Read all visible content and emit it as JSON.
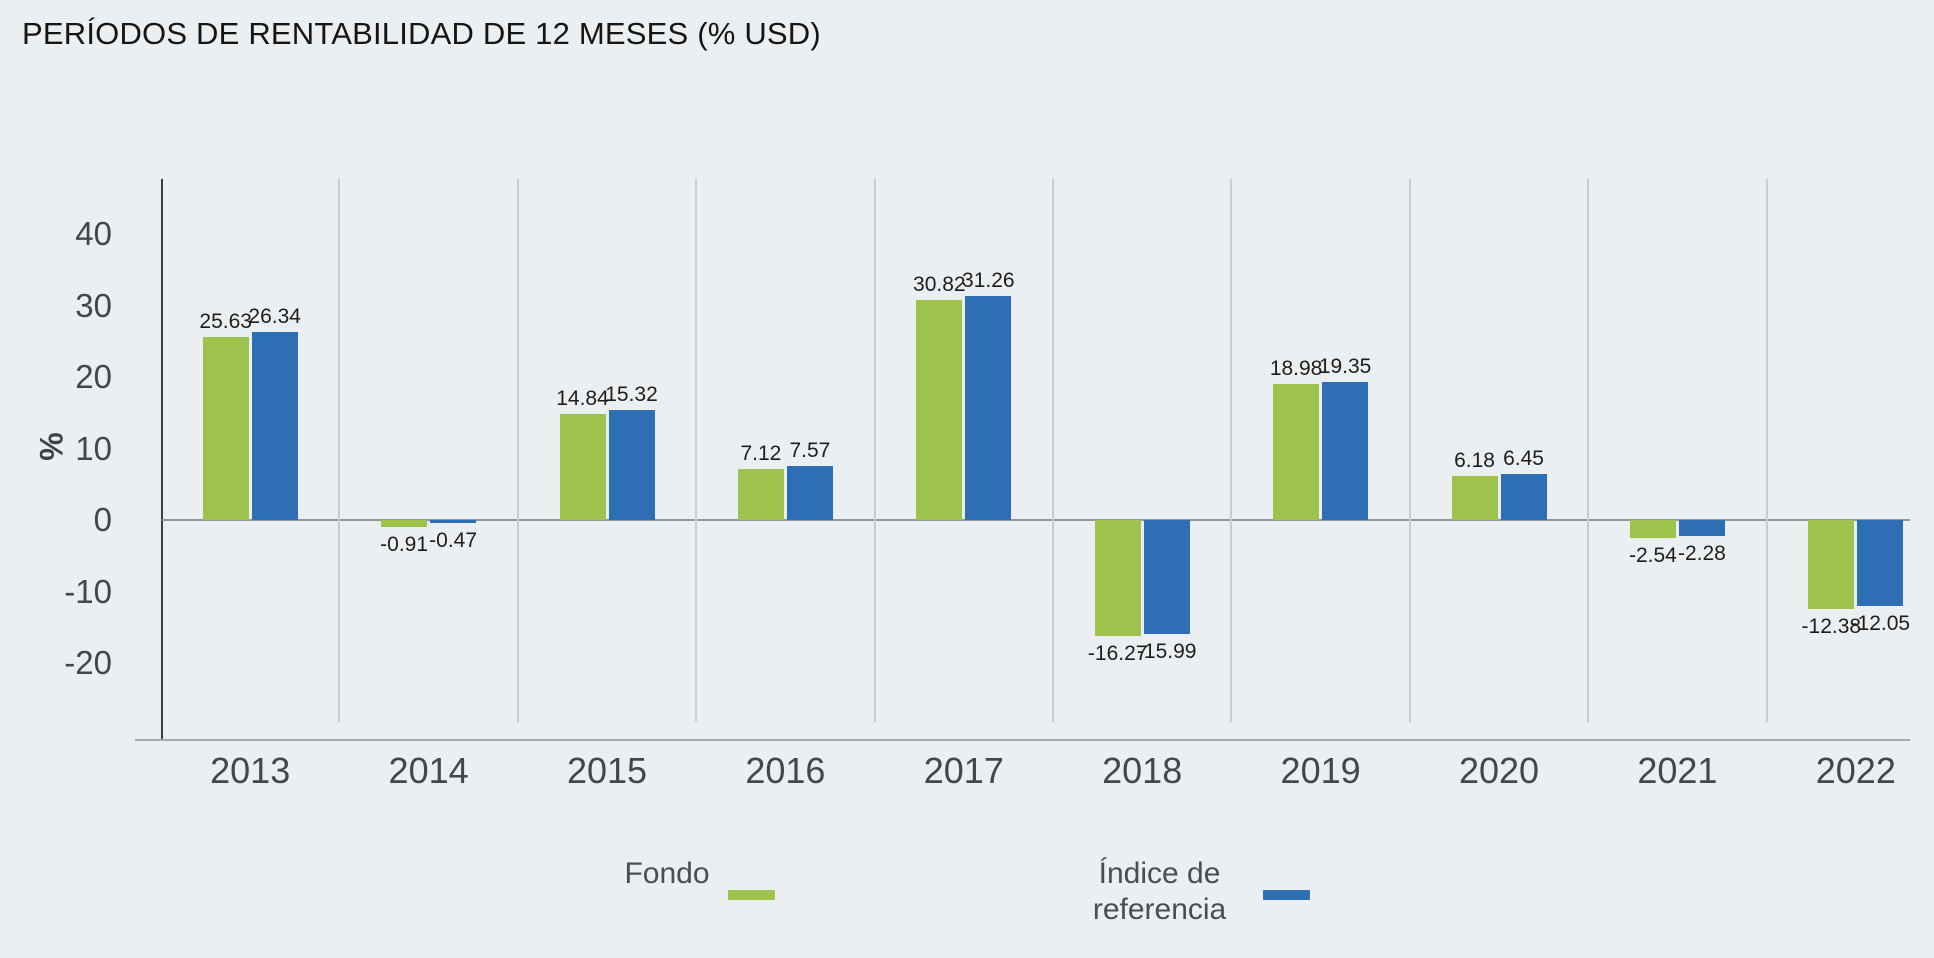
{
  "title": "PERÍODOS DE RENTABILIDAD DE 12 MESES (% USD)",
  "chart_data": {
    "type": "bar",
    "title": "PERÍODOS DE RENTABILIDAD DE 12 MESES (% USD)",
    "categories": [
      "2013",
      "2014",
      "2015",
      "2016",
      "2017",
      "2018",
      "2019",
      "2020",
      "2021",
      "2022"
    ],
    "series": [
      {
        "name": "Fondo",
        "color": "#9dc34c",
        "values": [
          25.63,
          -0.91,
          14.84,
          7.12,
          30.82,
          -16.27,
          18.98,
          6.18,
          -2.54,
          -12.38
        ]
      },
      {
        "name": "Índice de referencia",
        "color": "#2e6eb5",
        "values": [
          26.34,
          -0.47,
          15.32,
          7.57,
          31.26,
          -15.99,
          19.35,
          6.45,
          -2.28,
          -12.05
        ]
      }
    ],
    "xlabel": "",
    "ylabel": "%",
    "yticks": [
      40,
      30,
      20,
      10,
      0,
      -10,
      -20
    ],
    "ylim": [
      -28,
      48
    ],
    "grid": "vertical-category-separators",
    "legend_position": "bottom",
    "background_color": "#eceff1",
    "value_label_decimals": 2
  }
}
